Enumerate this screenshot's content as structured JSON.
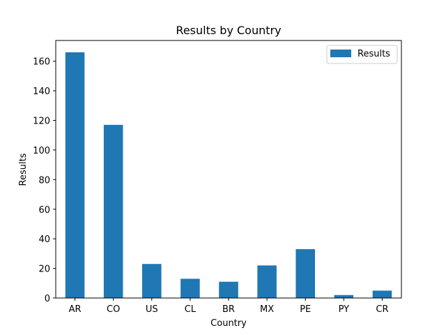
{
  "chart_data": {
    "type": "bar",
    "title": "Results by Country",
    "xlabel": "Country",
    "ylabel": "Results",
    "categories": [
      "AR",
      "CO",
      "US",
      "CL",
      "BR",
      "MX",
      "PE",
      "PY",
      "CR"
    ],
    "series": [
      {
        "name": "Results",
        "values": [
          166,
          117,
          23,
          13,
          11,
          22,
          33,
          2,
          5
        ],
        "color": "#1f77b4"
      }
    ],
    "ylim": [
      0,
      174
    ],
    "yticks": [
      0,
      20,
      40,
      60,
      80,
      100,
      120,
      140,
      160
    ],
    "grid": false,
    "legend_position": "top-right"
  }
}
